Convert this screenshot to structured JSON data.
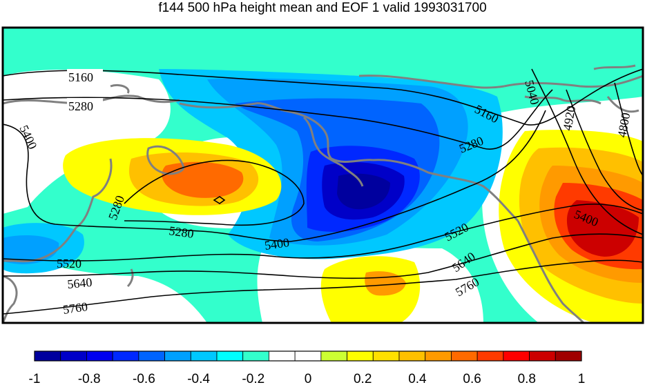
{
  "title": "f144 500 hPa height mean and EOF 1 valid 1993031700",
  "colorbar": {
    "colors": [
      "#00009e",
      "#0000c8",
      "#0000f0",
      "#0028ff",
      "#0064ff",
      "#00a0ff",
      "#00c8ff",
      "#00ffff",
      "#33ffcc",
      "#ffffff",
      "#ffffff",
      "#ccff33",
      "#ffff00",
      "#ffe000",
      "#ffc000",
      "#ff9a00",
      "#ff6a00",
      "#ff3a00",
      "#ff0000",
      "#cc0000",
      "#a00000"
    ],
    "tick_labels": [
      "-1",
      "-0.8",
      "-0.6",
      "-0.4",
      "-0.2",
      "0",
      "0.2",
      "0.4",
      "0.6",
      "0.8",
      "1"
    ]
  },
  "map_colors": {
    "ocean_fill": "#33ffcc",
    "coast": "#808080",
    "contour": "#000000"
  },
  "contours": [
    {
      "value": "5160",
      "label": "5160"
    },
    {
      "value": "5280",
      "label": "5280"
    },
    {
      "value": "5400",
      "label": "5400"
    },
    {
      "value": "5520",
      "label": "5520"
    },
    {
      "value": "5640",
      "label": "5640"
    },
    {
      "value": "5760",
      "label": "5760"
    },
    {
      "value": "5040",
      "label": "5040"
    },
    {
      "value": "4920",
      "label": "4920"
    },
    {
      "value": "4800",
      "label": "4800"
    }
  ],
  "contour_labels": {
    "l5160_w": "5160",
    "l5280_w": "5280",
    "l5400_w": "5400",
    "l5280_mid": "5280",
    "l5280_c": "5280",
    "l5400_c": "5400",
    "l5520_w": "5520",
    "l5640_w": "5640",
    "l5760_w": "5760",
    "l5160_e": "5160",
    "l5280_e": "5280",
    "l5520_e": "5520",
    "l5640_e": "5640",
    "l5760_e": "5760",
    "l5040": "5040",
    "l4920": "4920",
    "l4800": "4800",
    "l5400_e": "5400"
  }
}
